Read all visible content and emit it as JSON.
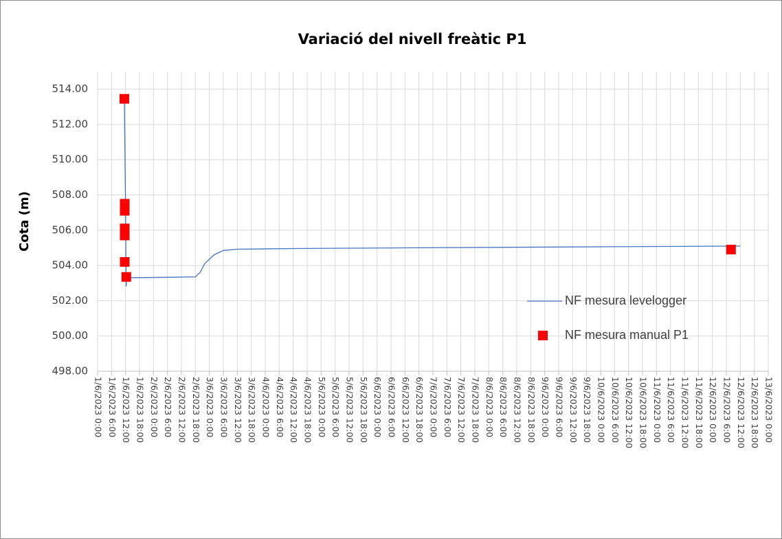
{
  "chart_data": {
    "type": "line",
    "title": "Variació del nivell freàtic P1",
    "y_label": "Cota (m)",
    "ylim": [
      498,
      515
    ],
    "yticks": [
      {
        "value": 498,
        "label": "498.00"
      },
      {
        "value": 500,
        "label": "500.00"
      },
      {
        "value": 502,
        "label": "502.00"
      },
      {
        "value": 504,
        "label": "504.00"
      },
      {
        "value": 506,
        "label": "506.00"
      },
      {
        "value": 508,
        "label": "508.00"
      },
      {
        "value": 510,
        "label": "510.00"
      },
      {
        "value": 512,
        "label": "512.00"
      },
      {
        "value": 514,
        "label": "514.00"
      }
    ],
    "xlim": [
      "2023-06-01T00:00",
      "2023-06-13T00:00"
    ],
    "xticks": [
      {
        "value": "2023-06-01T00:00",
        "label": "1/6/2023 0:00"
      },
      {
        "value": "2023-06-01T06:00",
        "label": "1/6/2023 6:00"
      },
      {
        "value": "2023-06-01T12:00",
        "label": "1/6/2023 12:00"
      },
      {
        "value": "2023-06-01T18:00",
        "label": "1/6/2023 18:00"
      },
      {
        "value": "2023-06-02T00:00",
        "label": "2/6/2023 0:00"
      },
      {
        "value": "2023-06-02T06:00",
        "label": "2/6/2023 6:00"
      },
      {
        "value": "2023-06-02T12:00",
        "label": "2/6/2023 12:00"
      },
      {
        "value": "2023-06-02T18:00",
        "label": "2/6/2023 18:00"
      },
      {
        "value": "2023-06-03T00:00",
        "label": "3/6/2023 0:00"
      },
      {
        "value": "2023-06-03T06:00",
        "label": "3/6/2023 6:00"
      },
      {
        "value": "2023-06-03T12:00",
        "label": "3/6/2023 12:00"
      },
      {
        "value": "2023-06-03T18:00",
        "label": "3/6/2023 18:00"
      },
      {
        "value": "2023-06-04T00:00",
        "label": "4/6/2023 0:00"
      },
      {
        "value": "2023-06-04T06:00",
        "label": "4/6/2023 6:00"
      },
      {
        "value": "2023-06-04T12:00",
        "label": "4/6/2023 12:00"
      },
      {
        "value": "2023-06-04T18:00",
        "label": "4/6/2023 18:00"
      },
      {
        "value": "2023-06-05T00:00",
        "label": "5/6/2023 0:00"
      },
      {
        "value": "2023-06-05T06:00",
        "label": "5/6/2023 6:00"
      },
      {
        "value": "2023-06-05T12:00",
        "label": "5/6/2023 12:00"
      },
      {
        "value": "2023-06-05T18:00",
        "label": "5/6/2023 18:00"
      },
      {
        "value": "2023-06-06T00:00",
        "label": "6/6/2023 0:00"
      },
      {
        "value": "2023-06-06T06:00",
        "label": "6/6/2023 6:00"
      },
      {
        "value": "2023-06-06T12:00",
        "label": "6/6/2023 12:00"
      },
      {
        "value": "2023-06-06T18:00",
        "label": "6/6/2023 18:00"
      },
      {
        "value": "2023-06-07T00:00",
        "label": "7/6/2023 0:00"
      },
      {
        "value": "2023-06-07T06:00",
        "label": "7/6/2023 6:00"
      },
      {
        "value": "2023-06-07T12:00",
        "label": "7/6/2023 12:00"
      },
      {
        "value": "2023-06-07T18:00",
        "label": "7/6/2023 18:00"
      },
      {
        "value": "2023-06-08T00:00",
        "label": "8/6/2023 0:00"
      },
      {
        "value": "2023-06-08T06:00",
        "label": "8/6/2023 6:00"
      },
      {
        "value": "2023-06-08T12:00",
        "label": "8/6/2023 12:00"
      },
      {
        "value": "2023-06-08T18:00",
        "label": "8/6/2023 18:00"
      },
      {
        "value": "2023-06-09T00:00",
        "label": "9/6/2023 0:00"
      },
      {
        "value": "2023-06-09T06:00",
        "label": "9/6/2023 6:00"
      },
      {
        "value": "2023-06-09T12:00",
        "label": "9/6/2023 12:00"
      },
      {
        "value": "2023-06-09T18:00",
        "label": "9/6/2023 18:00"
      },
      {
        "value": "2023-06-10T00:00",
        "label": "10/6/2023 0:00"
      },
      {
        "value": "2023-06-10T06:00",
        "label": "10/6/2023 6:00"
      },
      {
        "value": "2023-06-10T12:00",
        "label": "10/6/2023 12:00"
      },
      {
        "value": "2023-06-10T18:00",
        "label": "10/6/2023 18:00"
      },
      {
        "value": "2023-06-11T00:00",
        "label": "11/6/2023 0:00"
      },
      {
        "value": "2023-06-11T06:00",
        "label": "11/6/2023 6:00"
      },
      {
        "value": "2023-06-11T12:00",
        "label": "11/6/2023 12:00"
      },
      {
        "value": "2023-06-11T18:00",
        "label": "11/6/2023 18:00"
      },
      {
        "value": "2023-06-12T00:00",
        "label": "12/6/2023 0:00"
      },
      {
        "value": "2023-06-12T06:00",
        "label": "12/6/2023 6:00"
      },
      {
        "value": "2023-06-12T12:00",
        "label": "12/6/2023 12:00"
      },
      {
        "value": "2023-06-12T18:00",
        "label": "12/6/2023 18:00"
      },
      {
        "value": "2023-06-13T00:00",
        "label": "13/6/2023 0:00"
      }
    ],
    "grid": true,
    "series": [
      {
        "name": "NF mesura levelogger",
        "type": "line",
        "color": "#4472c4",
        "x": [
          "2023-06-01T11:30",
          "2023-06-01T12:00",
          "2023-06-01T12:15",
          "2023-06-01T12:30",
          "2023-06-02T18:00",
          "2023-06-02T20:00",
          "2023-06-02T22:00",
          "2023-06-03T02:00",
          "2023-06-03T06:00",
          "2023-06-03T12:00",
          "2023-06-04T12:00",
          "2023-06-06T12:00",
          "2023-06-09T12:00",
          "2023-06-12T12:00"
        ],
        "values": [
          513.4,
          507.5,
          502.8,
          503.3,
          503.35,
          503.6,
          504.1,
          504.6,
          504.85,
          504.92,
          504.96,
          505.0,
          505.05,
          505.1
        ]
      },
      {
        "name": "NF mesura manual P1",
        "type": "scatter",
        "color": "#ff0000",
        "x": [
          "2023-06-01T11:30",
          "2023-06-01T11:40",
          "2023-06-01T11:40",
          "2023-06-01T11:40",
          "2023-06-01T11:40",
          "2023-06-01T11:40",
          "2023-06-01T12:20",
          "2023-06-12T08:00"
        ],
        "values": [
          513.45,
          507.5,
          507.1,
          506.1,
          505.7,
          504.2,
          503.35,
          504.9
        ]
      }
    ]
  }
}
